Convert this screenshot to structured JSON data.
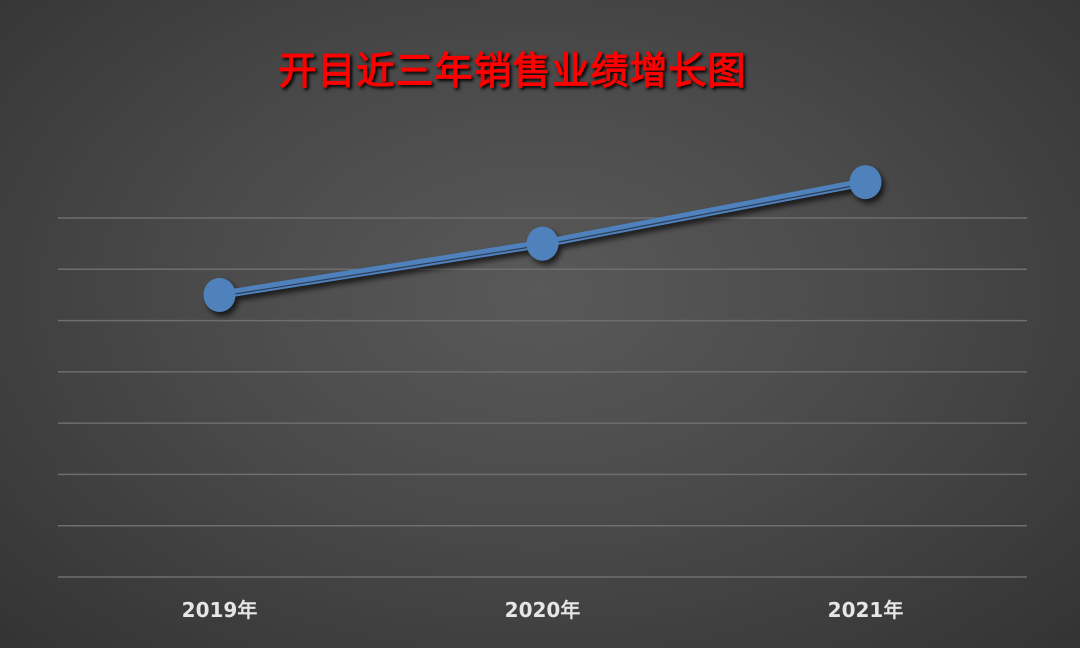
{
  "chart_data": {
    "type": "line",
    "title": "开目近三年销售业绩增长图",
    "categories": [
      "2019年",
      "2020年",
      "2021年"
    ],
    "series": [
      {
        "values": [
          5.5,
          6.5,
          7.7
        ],
        "color": "#4f81bd"
      }
    ],
    "ylim": [
      0,
      7
    ],
    "grid": true,
    "y_tick_labels_shown": false,
    "legend": "none",
    "title_color": "#ff0000",
    "background": "#4a4a4a"
  }
}
